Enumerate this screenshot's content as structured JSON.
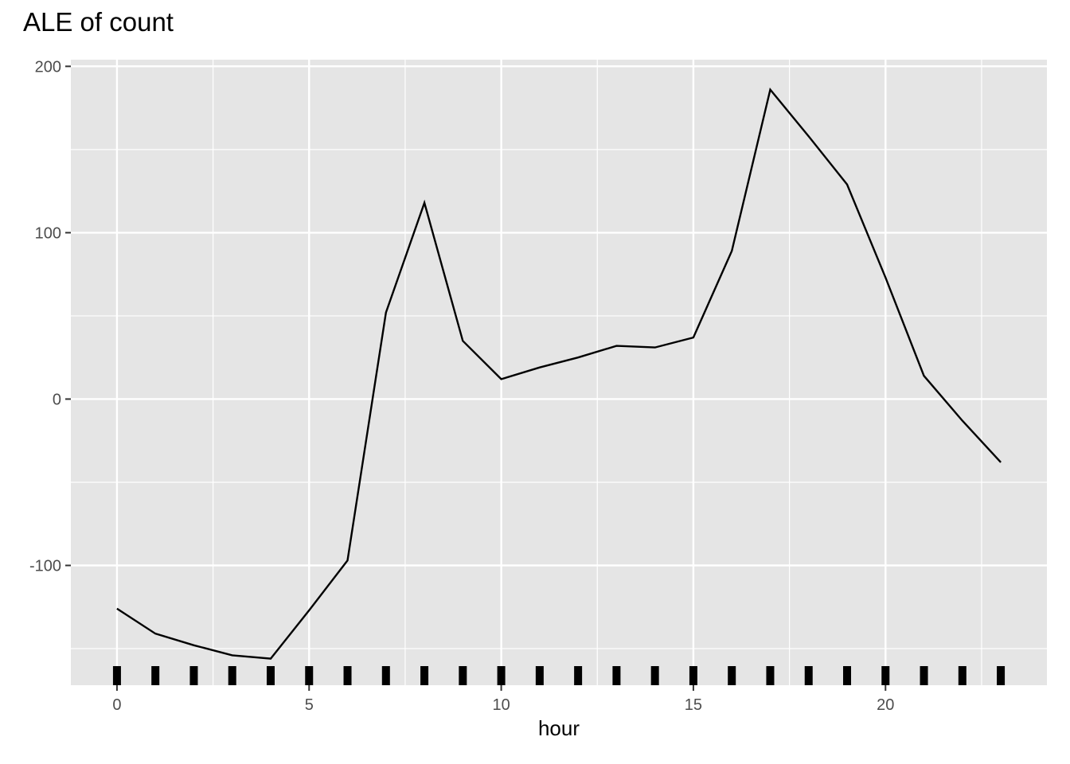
{
  "chart_data": {
    "type": "line",
    "title": "ALE of count",
    "xlabel": "hour",
    "ylabel": "",
    "xlim": [
      -1.2,
      24.2
    ],
    "ylim": [
      -172,
      204
    ],
    "x_ticks": [
      0,
      5,
      10,
      15,
      20
    ],
    "x_tick_labels": [
      "0",
      "5",
      "10",
      "15",
      "20"
    ],
    "y_ticks": [
      -100,
      0,
      100,
      200
    ],
    "y_tick_labels": [
      "-100",
      "0",
      "100",
      "200"
    ],
    "grid": true,
    "legend": "none",
    "series": [
      {
        "x": [
          0,
          1,
          2,
          3,
          4,
          5,
          6,
          7,
          8,
          9,
          10,
          11,
          12,
          13,
          14,
          15,
          16,
          17,
          18,
          19,
          20,
          21,
          22,
          23
        ],
        "values": [
          -126,
          -141,
          -148,
          -154,
          -156,
          -127,
          -97,
          52,
          118,
          35,
          12,
          19,
          25,
          32,
          31,
          37,
          89,
          186,
          158,
          129,
          73,
          14,
          -13,
          -38
        ]
      }
    ],
    "rug_x": [
      0,
      1,
      2,
      3,
      4,
      5,
      6,
      7,
      8,
      9,
      10,
      11,
      12,
      13,
      14,
      15,
      16,
      17,
      18,
      19,
      20,
      21,
      22,
      23
    ]
  },
  "colors": {
    "panel_background": "#e5e5e5",
    "grid_line": "#ffffff",
    "data_line": "#000000",
    "rug": "#000000",
    "tick_text": "#4d4d4d",
    "tick_mark": "#333333"
  }
}
